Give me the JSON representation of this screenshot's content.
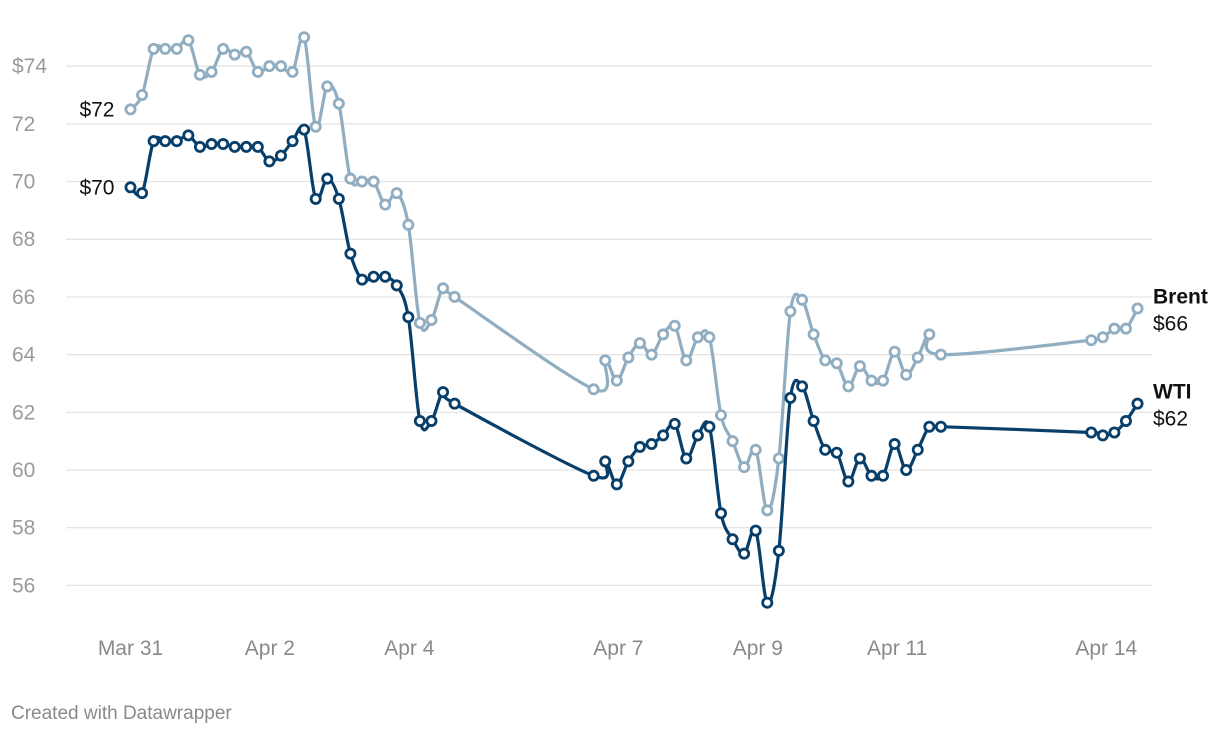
{
  "chart_data": {
    "type": "line",
    "x_axis": {
      "ticks": [
        {
          "label": "Mar 31",
          "x": 0
        },
        {
          "label": "Apr 2",
          "x": 2
        },
        {
          "label": "Apr 4",
          "x": 4
        },
        {
          "label": "Apr 7",
          "x": 7
        },
        {
          "label": "Apr 9",
          "x": 9
        },
        {
          "label": "Apr 11",
          "x": 11
        },
        {
          "label": "Apr 14",
          "x": 14
        }
      ]
    },
    "y_axis": {
      "ticks": [
        {
          "value": 74,
          "label": "$74"
        },
        {
          "value": 72,
          "label": "72"
        },
        {
          "value": 70,
          "label": "70"
        },
        {
          "value": 68,
          "label": "68"
        },
        {
          "value": 66,
          "label": "66"
        },
        {
          "value": 64,
          "label": "64"
        },
        {
          "value": 62,
          "label": "62"
        },
        {
          "value": 60,
          "label": "60"
        },
        {
          "value": 58,
          "label": "58"
        },
        {
          "value": 56,
          "label": "56"
        }
      ],
      "range": [
        54.8,
        75.6
      ],
      "grid": true
    },
    "series": [
      {
        "name": "Brent",
        "color": "#90adc1",
        "start_label": "$72",
        "end_label": "$66",
        "points": [
          [
            0.0,
            72.5
          ],
          [
            0.166,
            73.0
          ],
          [
            0.332,
            74.6
          ],
          [
            0.498,
            74.6
          ],
          [
            0.664,
            74.6
          ],
          [
            0.83,
            74.9
          ],
          [
            0.996,
            73.7
          ],
          [
            1.163,
            73.8
          ],
          [
            1.329,
            74.6
          ],
          [
            1.495,
            74.4
          ],
          [
            1.661,
            74.5
          ],
          [
            1.827,
            73.8
          ],
          [
            1.993,
            74.0
          ],
          [
            2.159,
            74.0
          ],
          [
            2.325,
            73.8
          ],
          [
            2.491,
            75.0
          ],
          [
            2.657,
            71.9
          ],
          [
            2.823,
            73.3
          ],
          [
            2.989,
            72.7
          ],
          [
            3.155,
            70.1
          ],
          [
            3.322,
            70.0
          ],
          [
            3.488,
            70.0
          ],
          [
            3.654,
            69.2
          ],
          [
            3.82,
            69.6
          ],
          [
            3.986,
            68.5
          ],
          [
            4.152,
            65.1
          ],
          [
            4.318,
            65.2
          ],
          [
            4.484,
            66.3
          ],
          [
            4.65,
            66.0
          ],
          [
            6.645,
            62.8
          ],
          [
            6.811,
            63.8
          ],
          [
            6.977,
            63.1
          ],
          [
            7.143,
            63.9
          ],
          [
            7.309,
            64.4
          ],
          [
            7.476,
            64.0
          ],
          [
            7.642,
            64.7
          ],
          [
            7.808,
            65.0
          ],
          [
            7.974,
            63.8
          ],
          [
            8.14,
            64.6
          ],
          [
            8.306,
            64.6
          ],
          [
            8.472,
            61.9
          ],
          [
            8.638,
            61.0
          ],
          [
            8.804,
            60.1
          ],
          [
            8.97,
            60.7
          ],
          [
            9.136,
            58.6
          ],
          [
            9.302,
            60.4
          ],
          [
            9.468,
            65.5
          ],
          [
            9.635,
            65.9
          ],
          [
            9.801,
            64.7
          ],
          [
            9.967,
            63.8
          ],
          [
            10.133,
            63.7
          ],
          [
            10.299,
            62.9
          ],
          [
            10.465,
            63.6
          ],
          [
            10.631,
            63.1
          ],
          [
            10.797,
            63.1
          ],
          [
            10.963,
            64.1
          ],
          [
            11.129,
            63.3
          ],
          [
            11.295,
            63.9
          ],
          [
            11.461,
            64.7
          ],
          [
            11.627,
            64.0
          ],
          [
            13.784,
            64.5
          ],
          [
            13.95,
            64.6
          ],
          [
            14.116,
            64.9
          ],
          [
            14.282,
            64.9
          ],
          [
            14.448,
            65.6
          ]
        ]
      },
      {
        "name": "WTI",
        "color": "#073f6a",
        "start_label": "$70",
        "end_label": "$62",
        "points": [
          [
            0.0,
            69.8
          ],
          [
            0.166,
            69.6
          ],
          [
            0.332,
            71.4
          ],
          [
            0.498,
            71.4
          ],
          [
            0.664,
            71.4
          ],
          [
            0.83,
            71.6
          ],
          [
            0.996,
            71.2
          ],
          [
            1.163,
            71.3
          ],
          [
            1.329,
            71.3
          ],
          [
            1.495,
            71.2
          ],
          [
            1.661,
            71.2
          ],
          [
            1.827,
            71.2
          ],
          [
            1.993,
            70.7
          ],
          [
            2.159,
            70.9
          ],
          [
            2.325,
            71.4
          ],
          [
            2.491,
            71.8
          ],
          [
            2.657,
            69.4
          ],
          [
            2.823,
            70.1
          ],
          [
            2.989,
            69.4
          ],
          [
            3.155,
            67.5
          ],
          [
            3.322,
            66.6
          ],
          [
            3.488,
            66.7
          ],
          [
            3.654,
            66.7
          ],
          [
            3.82,
            66.4
          ],
          [
            3.986,
            65.3
          ],
          [
            4.152,
            61.7
          ],
          [
            4.318,
            61.7
          ],
          [
            4.484,
            62.7
          ],
          [
            4.65,
            62.3
          ],
          [
            6.645,
            59.8
          ],
          [
            6.811,
            60.3
          ],
          [
            6.977,
            59.5
          ],
          [
            7.143,
            60.3
          ],
          [
            7.309,
            60.8
          ],
          [
            7.476,
            60.9
          ],
          [
            7.642,
            61.2
          ],
          [
            7.808,
            61.6
          ],
          [
            7.974,
            60.4
          ],
          [
            8.14,
            61.2
          ],
          [
            8.306,
            61.5
          ],
          [
            8.472,
            58.5
          ],
          [
            8.638,
            57.6
          ],
          [
            8.804,
            57.1
          ],
          [
            8.97,
            57.9
          ],
          [
            9.136,
            55.4
          ],
          [
            9.302,
            57.2
          ],
          [
            9.468,
            62.5
          ],
          [
            9.635,
            62.9
          ],
          [
            9.801,
            61.7
          ],
          [
            9.967,
            60.7
          ],
          [
            10.133,
            60.6
          ],
          [
            10.299,
            59.6
          ],
          [
            10.465,
            60.4
          ],
          [
            10.631,
            59.8
          ],
          [
            10.797,
            59.8
          ],
          [
            10.963,
            60.9
          ],
          [
            11.129,
            60.0
          ],
          [
            11.295,
            60.7
          ],
          [
            11.461,
            61.5
          ],
          [
            11.627,
            61.5
          ],
          [
            13.784,
            61.3
          ],
          [
            13.95,
            61.2
          ],
          [
            14.116,
            61.3
          ],
          [
            14.282,
            61.7
          ],
          [
            14.448,
            62.3
          ]
        ]
      }
    ]
  },
  "footer": {
    "credit": "Created with Datawrapper"
  }
}
